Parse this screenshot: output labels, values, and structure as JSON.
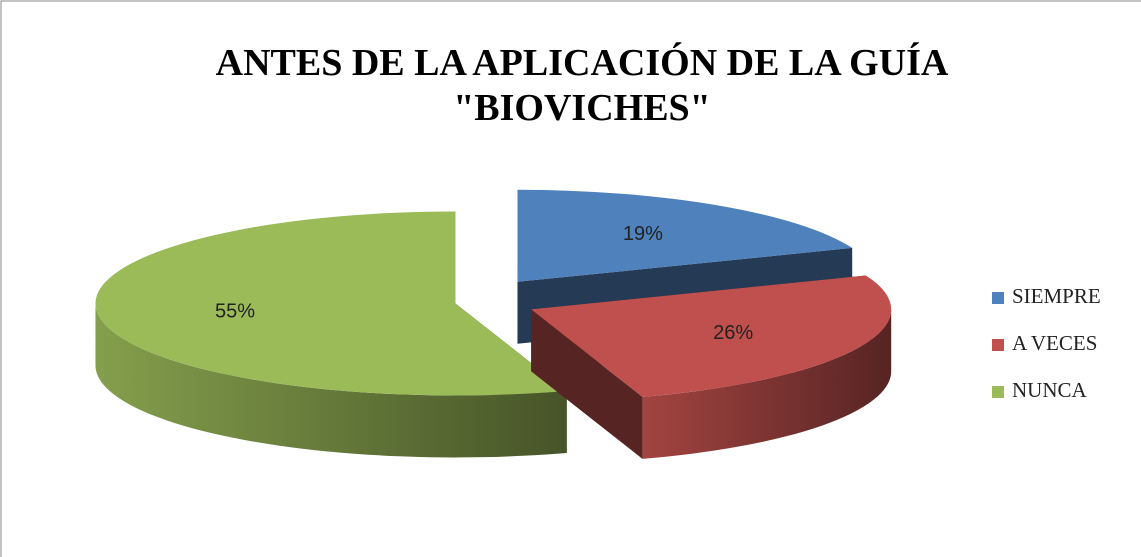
{
  "chart_data": {
    "type": "pie",
    "title": [
      "ANTES DE LA APLICACIÓN DE LA GUÍA",
      "\"BIOVICHES\""
    ],
    "categories": [
      "SIEMPRE",
      "A VECES",
      "NUNCA"
    ],
    "values": [
      19,
      26,
      55
    ],
    "value_labels": [
      "19%",
      "26%",
      "55%"
    ],
    "colors": [
      "#4f81bd",
      "#c0504d",
      "#9bbb59"
    ],
    "legend": "right"
  }
}
